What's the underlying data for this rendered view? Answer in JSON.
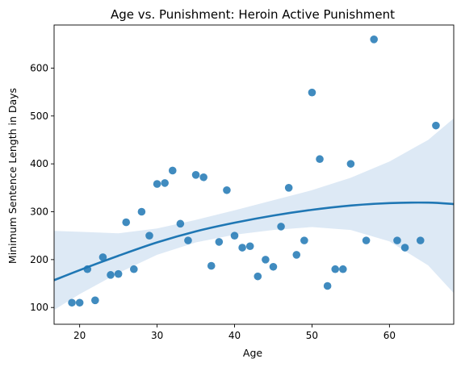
{
  "chart_data": {
    "type": "scatter",
    "title": "Age vs. Punishment: Heroin Active Punishment",
    "xlabel": "Age",
    "ylabel": "Minimum Sentence Length in Days",
    "xlim": [
      16.7,
      68.3
    ],
    "ylim": [
      65,
      690
    ],
    "xticks": [
      20,
      30,
      40,
      50,
      60
    ],
    "yticks": [
      100,
      200,
      300,
      400,
      500,
      600
    ],
    "grid": false,
    "legend": "none",
    "colors": {
      "points": "#1f77b4",
      "fit_line": "#1f77b4",
      "confidence_band": "#c6dbef"
    },
    "points": [
      {
        "x": 19,
        "y": 110
      },
      {
        "x": 20,
        "y": 110
      },
      {
        "x": 21,
        "y": 180
      },
      {
        "x": 22,
        "y": 115
      },
      {
        "x": 23,
        "y": 205
      },
      {
        "x": 24,
        "y": 168
      },
      {
        "x": 25,
        "y": 170
      },
      {
        "x": 26,
        "y": 278
      },
      {
        "x": 27,
        "y": 180
      },
      {
        "x": 28,
        "y": 300
      },
      {
        "x": 29,
        "y": 250
      },
      {
        "x": 30,
        "y": 358
      },
      {
        "x": 31,
        "y": 360
      },
      {
        "x": 32,
        "y": 386
      },
      {
        "x": 33,
        "y": 275
      },
      {
        "x": 34,
        "y": 240
      },
      {
        "x": 35,
        "y": 377
      },
      {
        "x": 36,
        "y": 372
      },
      {
        "x": 37,
        "y": 187
      },
      {
        "x": 38,
        "y": 237
      },
      {
        "x": 39,
        "y": 345
      },
      {
        "x": 40,
        "y": 250
      },
      {
        "x": 41,
        "y": 225
      },
      {
        "x": 42,
        "y": 228
      },
      {
        "x": 43,
        "y": 165
      },
      {
        "x": 44,
        "y": 200
      },
      {
        "x": 45,
        "y": 185
      },
      {
        "x": 46,
        "y": 269
      },
      {
        "x": 47,
        "y": 350
      },
      {
        "x": 48,
        "y": 210
      },
      {
        "x": 49,
        "y": 240
      },
      {
        "x": 50,
        "y": 549
      },
      {
        "x": 51,
        "y": 410
      },
      {
        "x": 52,
        "y": 145
      },
      {
        "x": 53,
        "y": 180
      },
      {
        "x": 54,
        "y": 180
      },
      {
        "x": 55,
        "y": 400
      },
      {
        "x": 57,
        "y": 240
      },
      {
        "x": 58,
        "y": 660
      },
      {
        "x": 61,
        "y": 240
      },
      {
        "x": 62,
        "y": 225
      },
      {
        "x": 64,
        "y": 240
      },
      {
        "x": 66,
        "y": 480
      }
    ],
    "fit": {
      "x": [
        16.7,
        20,
        25,
        30,
        35,
        40,
        45,
        50,
        55,
        60,
        65,
        68.3
      ],
      "y": [
        157,
        178,
        208,
        236,
        259,
        277,
        292,
        304,
        313,
        318,
        319,
        316
      ],
      "lower": [
        95,
        128,
        172,
        210,
        236,
        252,
        262,
        268,
        262,
        238,
        188,
        130
      ],
      "upper": [
        260,
        258,
        255,
        265,
        283,
        303,
        324,
        345,
        371,
        405,
        450,
        495
      ]
    }
  }
}
